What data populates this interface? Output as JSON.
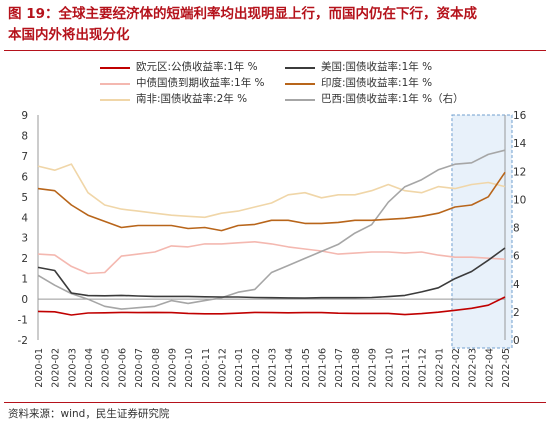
{
  "header": {
    "line1": "图 19：全球主要经济体的短端利率均出现明显上行，而国内仍在下行，资本成",
    "line2": "本国内外将出现分化"
  },
  "source": "资料来源：wind，民生证券研究院",
  "chart_data": {
    "type": "line",
    "x_ticks": [
      "2020-01",
      "2020-02",
      "2020-03",
      "2020-04",
      "2020-05",
      "2020-06",
      "2020-07",
      "2020-08",
      "2020-09",
      "2020-10",
      "2020-11",
      "2020-12",
      "2021-01",
      "2021-02",
      "2021-03",
      "2021-04",
      "2021-05",
      "2021-06",
      "2021-07",
      "2021-08",
      "2021-09",
      "2021-10",
      "2021-11",
      "2021-12",
      "2022-01",
      "2022-02",
      "2022-03",
      "2022-04",
      "2022-05"
    ],
    "y_left": {
      "min": -2,
      "max": 9,
      "ticks": [
        -2,
        -1,
        0,
        1,
        2,
        3,
        4,
        5,
        6,
        7,
        8,
        9
      ]
    },
    "y_right": {
      "min": 0,
      "max": 16,
      "ticks": [
        0,
        2,
        4,
        6,
        8,
        10,
        12,
        14,
        16
      ]
    },
    "highlight": {
      "from": "2022-02",
      "to": "2022-05"
    },
    "grid": false,
    "legend_position": "top",
    "series": [
      {
        "name": "欧元区:公债收益率:1年 %",
        "color": "#c00000",
        "axis": "left",
        "values": [
          -0.6,
          -0.62,
          -0.78,
          -0.68,
          -0.67,
          -0.65,
          -0.66,
          -0.65,
          -0.66,
          -0.7,
          -0.72,
          -0.72,
          -0.69,
          -0.65,
          -0.66,
          -0.67,
          -0.66,
          -0.66,
          -0.69,
          -0.7,
          -0.7,
          -0.7,
          -0.76,
          -0.71,
          -0.64,
          -0.55,
          -0.45,
          -0.3,
          0.1
        ]
      },
      {
        "name": "美国:国债收益率:1年 %",
        "color": "#3b3b3b",
        "axis": "left",
        "values": [
          1.55,
          1.4,
          0.3,
          0.17,
          0.16,
          0.18,
          0.15,
          0.13,
          0.13,
          0.13,
          0.11,
          0.1,
          0.1,
          0.08,
          0.07,
          0.06,
          0.05,
          0.07,
          0.07,
          0.07,
          0.08,
          0.12,
          0.18,
          0.35,
          0.55,
          1.0,
          1.35,
          1.9,
          2.5
        ]
      },
      {
        "name": "中债国债到期收益率:1年 %",
        "color": "#f4b8b0",
        "axis": "left",
        "values": [
          2.2,
          2.15,
          1.6,
          1.25,
          1.3,
          2.1,
          2.2,
          2.3,
          2.6,
          2.55,
          2.7,
          2.7,
          2.75,
          2.8,
          2.7,
          2.55,
          2.45,
          2.35,
          2.2,
          2.25,
          2.3,
          2.3,
          2.25,
          2.3,
          2.15,
          2.05,
          2.05,
          2.0,
          1.95
        ]
      },
      {
        "name": "印度:国债收益率:1年 %",
        "color": "#b8651a",
        "axis": "left",
        "values": [
          5.4,
          5.3,
          4.6,
          4.1,
          3.8,
          3.5,
          3.6,
          3.6,
          3.6,
          3.45,
          3.5,
          3.35,
          3.6,
          3.65,
          3.85,
          3.85,
          3.7,
          3.7,
          3.75,
          3.85,
          3.85,
          3.9,
          3.95,
          4.05,
          4.2,
          4.5,
          4.6,
          5.0,
          6.2
        ]
      },
      {
        "name": "南非:国债收益率:2年 %",
        "color": "#f0d6a8",
        "axis": "left",
        "values": [
          6.5,
          6.3,
          6.6,
          5.2,
          4.6,
          4.4,
          4.3,
          4.2,
          4.1,
          4.05,
          4.0,
          4.2,
          4.3,
          4.5,
          4.7,
          5.1,
          5.2,
          4.95,
          5.1,
          5.1,
          5.3,
          5.6,
          5.3,
          5.2,
          5.5,
          5.4,
          5.6,
          5.7,
          5.5
        ]
      },
      {
        "name": "巴西:国债收益率:1年 %（右）",
        "color": "#a6a6a6",
        "axis": "right",
        "values": [
          4.6,
          3.9,
          3.3,
          2.9,
          2.4,
          2.2,
          2.3,
          2.4,
          2.8,
          2.6,
          2.8,
          3.0,
          3.4,
          3.6,
          4.8,
          5.3,
          5.8,
          6.3,
          6.8,
          7.6,
          8.2,
          9.8,
          10.9,
          11.4,
          12.1,
          12.5,
          12.6,
          13.2,
          13.5
        ]
      }
    ]
  }
}
